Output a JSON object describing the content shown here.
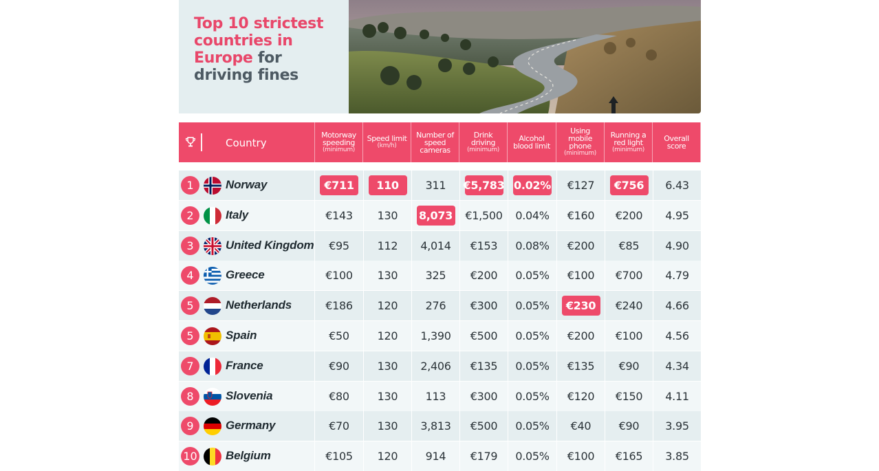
{
  "header": {
    "title_accent": "Top 10 strictest countries in Europe",
    "title_rest": "for driving fines"
  },
  "table": {
    "country_header": "Country",
    "columns": [
      {
        "label_lines": [
          "Motorway",
          "speeding"
        ],
        "sub": "(minimum)"
      },
      {
        "label_lines": [
          "Speed limit"
        ],
        "sub": "(km/h)"
      },
      {
        "label_lines": [
          "Number of",
          "speed",
          "cameras"
        ],
        "sub": ""
      },
      {
        "label_lines": [
          "Drink",
          "driving"
        ],
        "sub": "(minimum)"
      },
      {
        "label_lines": [
          "Alcohol",
          "blood limit"
        ],
        "sub": ""
      },
      {
        "label_lines": [
          "Using",
          "mobile",
          "phone"
        ],
        "sub": "(minimum)"
      },
      {
        "label_lines": [
          "Running a",
          "red light"
        ],
        "sub": "(minimum)"
      },
      {
        "label_lines": [
          "Overall",
          "score"
        ],
        "sub": ""
      }
    ],
    "rows": [
      {
        "rank": "1",
        "country": "Norway",
        "flag": "norway-flag-icon",
        "values": [
          "€711",
          "110",
          "311",
          "€5,783",
          "0.02%",
          "€127",
          "€756",
          "6.43"
        ],
        "highlight": [
          0,
          1,
          3,
          4,
          6
        ]
      },
      {
        "rank": "2",
        "country": "Italy",
        "flag": "italy-flag-icon",
        "values": [
          "€143",
          "130",
          "8,073",
          "€1,500",
          "0.04%",
          "€160",
          "€200",
          "4.95"
        ],
        "highlight": [
          2
        ]
      },
      {
        "rank": "3",
        "country": "United Kingdom",
        "flag": "uk-flag-icon",
        "values": [
          "€95",
          "112",
          "4,014",
          "€153",
          "0.08%",
          "€200",
          "€85",
          "4.90"
        ],
        "highlight": []
      },
      {
        "rank": "4",
        "country": "Greece",
        "flag": "greece-flag-icon",
        "values": [
          "€100",
          "130",
          "325",
          "€200",
          "0.05%",
          "€100",
          "€700",
          "4.79"
        ],
        "highlight": []
      },
      {
        "rank": "5",
        "country": "Netherlands",
        "flag": "netherlands-flag-icon",
        "values": [
          "€186",
          "120",
          "276",
          "€300",
          "0.05%",
          "€230",
          "€240",
          "4.66"
        ],
        "highlight": [
          5
        ]
      },
      {
        "rank": "5",
        "country": "Spain",
        "flag": "spain-flag-icon",
        "values": [
          "€50",
          "120",
          "1,390",
          "€500",
          "0.05%",
          "€200",
          "€100",
          "4.56"
        ],
        "highlight": []
      },
      {
        "rank": "7",
        "country": "France",
        "flag": "france-flag-icon",
        "values": [
          "€90",
          "130",
          "2,406",
          "€135",
          "0.05%",
          "€135",
          "€90",
          "4.34"
        ],
        "highlight": []
      },
      {
        "rank": "8",
        "country": "Slovenia",
        "flag": "slovenia-flag-icon",
        "values": [
          "€80",
          "130",
          "113",
          "€300",
          "0.05%",
          "€120",
          "€150",
          "4.11"
        ],
        "highlight": []
      },
      {
        "rank": "9",
        "country": "Germany",
        "flag": "germany-flag-icon",
        "values": [
          "€70",
          "130",
          "3,813",
          "€500",
          "0.05%",
          "€40",
          "€90",
          "3.95"
        ],
        "highlight": []
      },
      {
        "rank": "10",
        "country": "Belgium",
        "flag": "belgium-flag-icon",
        "values": [
          "€105",
          "120",
          "914",
          "€179",
          "0.05%",
          "€100",
          "€165",
          "3.85"
        ],
        "highlight": []
      }
    ]
  },
  "colors": {
    "accent": "#ee4a6a",
    "title_accent": "#e8476a",
    "title_text": "#4d5a63",
    "row_alt": "#e5eef0"
  }
}
